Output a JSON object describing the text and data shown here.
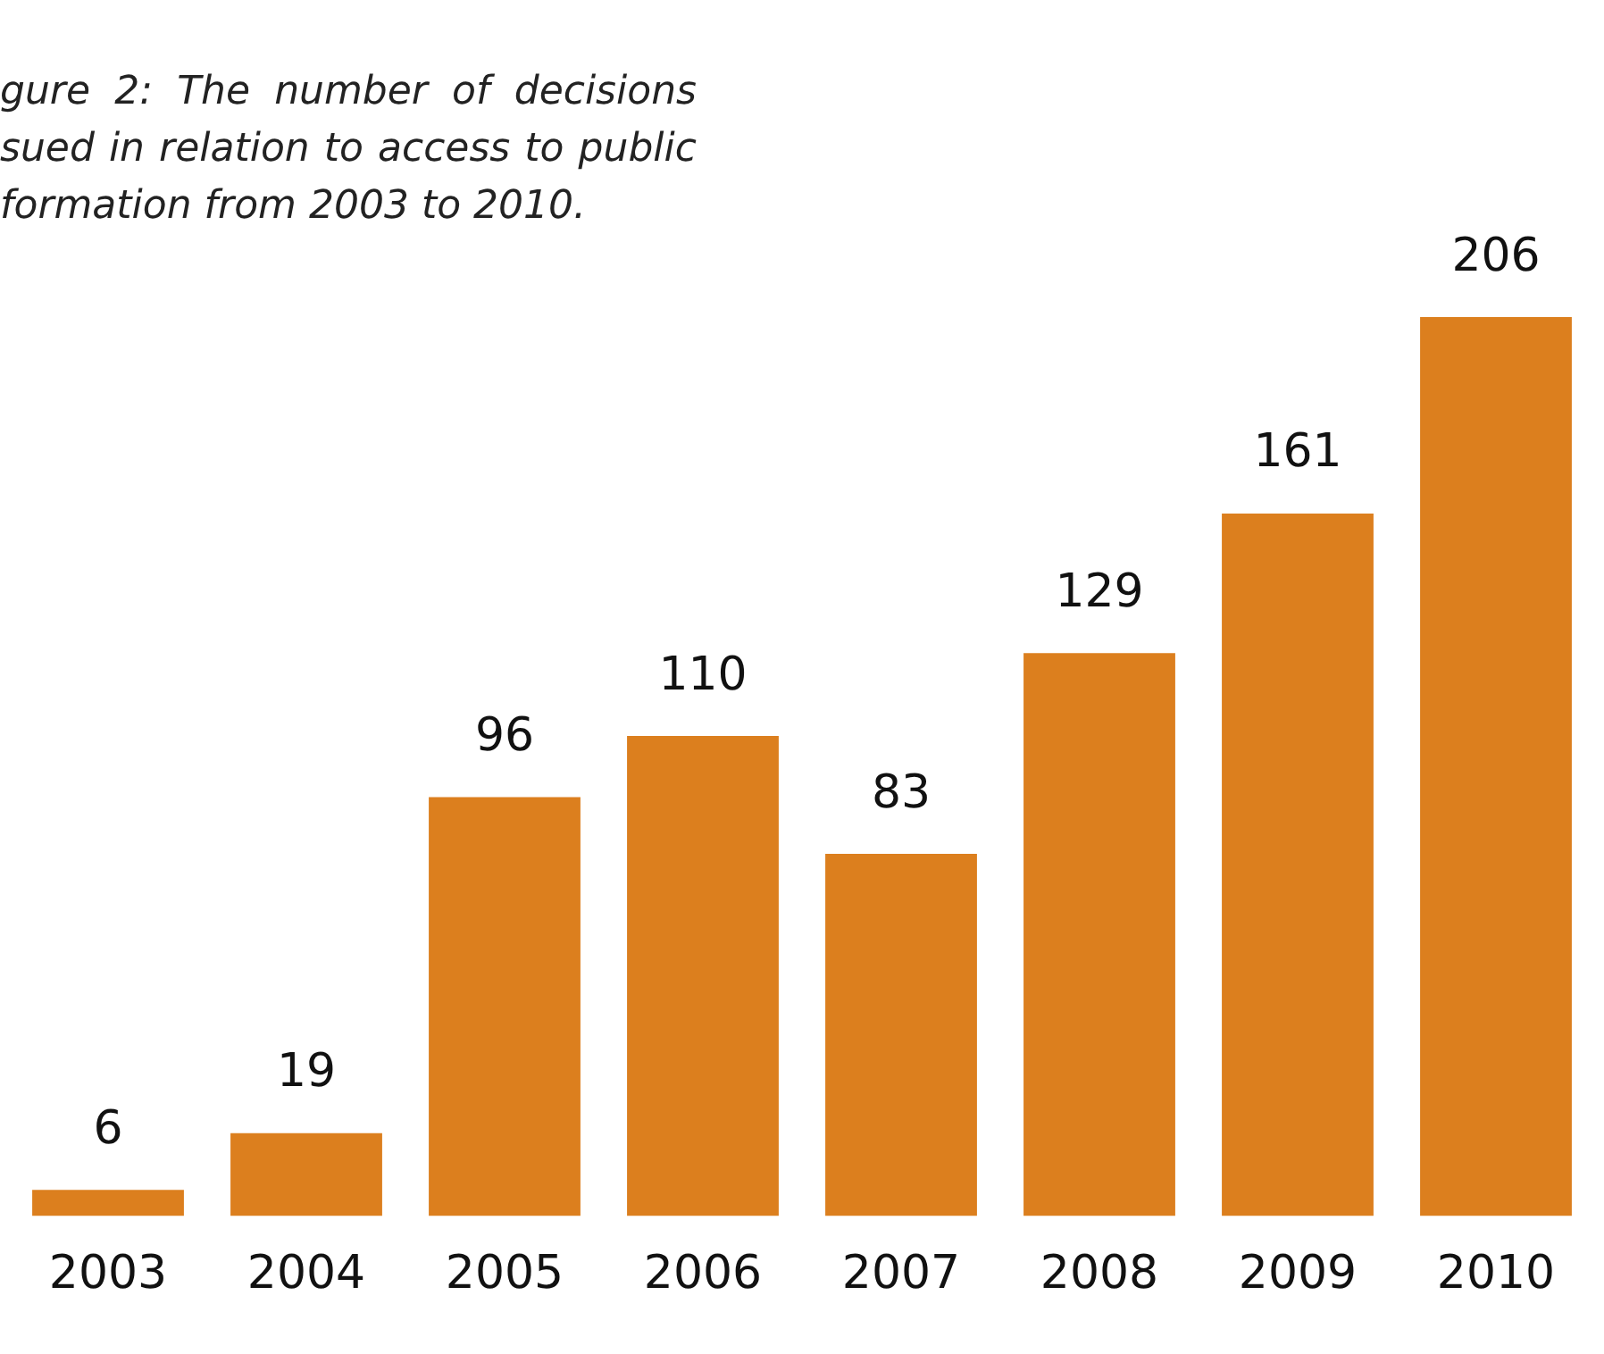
{
  "chart_data": {
    "type": "bar",
    "title": "gure 2: The number of decisions sued in relation to access to public formation from 2003 to 2010.",
    "categories": [
      "2003",
      "2004",
      "2005",
      "2006",
      "2007",
      "2008",
      "2009",
      "2010"
    ],
    "values": [
      6,
      19,
      96,
      110,
      83,
      129,
      161,
      206
    ],
    "color": "#dc7f1e",
    "data_labels": true,
    "grid": false,
    "legend": false
  }
}
